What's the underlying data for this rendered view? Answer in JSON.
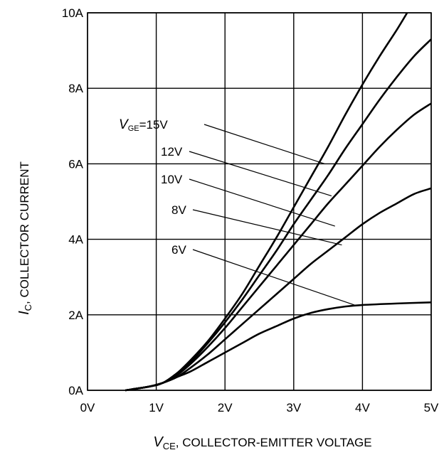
{
  "chart_data": {
    "type": "line",
    "title": "",
    "xlabel": {
      "symbol": "V",
      "sub": "CE",
      "text": ", COLLECTOR-EMITTER VOLTAGE"
    },
    "ylabel": {
      "symbol": "I",
      "sub": "C",
      "text": ", COLLECTOR CURRENT"
    },
    "xlim": [
      0,
      5
    ],
    "ylim": [
      0,
      10
    ],
    "xticks": [
      0,
      1,
      2,
      3,
      4,
      5
    ],
    "yticks": [
      0,
      2,
      4,
      6,
      8,
      10
    ],
    "xtick_labels": [
      "0V",
      "1V",
      "2V",
      "3V",
      "4V",
      "5V"
    ],
    "ytick_labels": [
      "0A",
      "2A",
      "4A",
      "6A",
      "8A",
      "10A"
    ],
    "grid": true,
    "legend_label_prefix": {
      "symbol": "V",
      "sub": "GE",
      "text": "=15V"
    },
    "series": [
      {
        "name": "15V",
        "label_at": [
          3.45,
          6.0
        ],
        "points": [
          [
            0.55,
            0
          ],
          [
            0.9,
            0.1
          ],
          [
            1.1,
            0.2
          ],
          [
            1.3,
            0.45
          ],
          [
            1.5,
            0.8
          ],
          [
            1.75,
            1.3
          ],
          [
            2.0,
            1.9
          ],
          [
            2.25,
            2.55
          ],
          [
            2.5,
            3.3
          ],
          [
            2.75,
            4.05
          ],
          [
            3.0,
            4.85
          ],
          [
            3.25,
            5.65
          ],
          [
            3.5,
            6.45
          ],
          [
            3.75,
            7.3
          ],
          [
            4.0,
            8.1
          ],
          [
            4.25,
            8.85
          ],
          [
            4.5,
            9.55
          ],
          [
            4.65,
            10.0
          ]
        ]
      },
      {
        "name": "12V",
        "label_at": [
          3.55,
          5.15
        ],
        "points": [
          [
            0.55,
            0
          ],
          [
            0.9,
            0.1
          ],
          [
            1.1,
            0.2
          ],
          [
            1.3,
            0.45
          ],
          [
            1.5,
            0.75
          ],
          [
            1.75,
            1.25
          ],
          [
            2.0,
            1.8
          ],
          [
            2.25,
            2.4
          ],
          [
            2.5,
            3.05
          ],
          [
            2.75,
            3.7
          ],
          [
            3.0,
            4.4
          ],
          [
            3.25,
            5.05
          ],
          [
            3.5,
            5.7
          ],
          [
            3.75,
            6.4
          ],
          [
            4.0,
            7.05
          ],
          [
            4.25,
            7.7
          ],
          [
            4.5,
            8.3
          ],
          [
            4.75,
            8.85
          ],
          [
            5.0,
            9.3
          ]
        ]
      },
      {
        "name": "10V",
        "label_at": [
          3.6,
          4.35
        ],
        "points": [
          [
            0.55,
            0
          ],
          [
            0.9,
            0.1
          ],
          [
            1.1,
            0.2
          ],
          [
            1.3,
            0.4
          ],
          [
            1.5,
            0.7
          ],
          [
            1.75,
            1.15
          ],
          [
            2.0,
            1.65
          ],
          [
            2.25,
            2.2
          ],
          [
            2.5,
            2.75
          ],
          [
            2.75,
            3.3
          ],
          [
            3.0,
            3.85
          ],
          [
            3.25,
            4.4
          ],
          [
            3.5,
            4.95
          ],
          [
            3.75,
            5.45
          ],
          [
            4.0,
            5.95
          ],
          [
            4.25,
            6.45
          ],
          [
            4.5,
            6.9
          ],
          [
            4.75,
            7.3
          ],
          [
            5.0,
            7.6
          ]
        ]
      },
      {
        "name": "8V",
        "label_at": [
          3.7,
          3.85
        ],
        "points": [
          [
            0.55,
            0
          ],
          [
            0.9,
            0.1
          ],
          [
            1.1,
            0.2
          ],
          [
            1.3,
            0.35
          ],
          [
            1.5,
            0.6
          ],
          [
            1.75,
            0.95
          ],
          [
            2.0,
            1.35
          ],
          [
            2.25,
            1.75
          ],
          [
            2.5,
            2.15
          ],
          [
            2.75,
            2.55
          ],
          [
            3.0,
            2.95
          ],
          [
            3.25,
            3.35
          ],
          [
            3.5,
            3.7
          ],
          [
            3.75,
            4.05
          ],
          [
            4.0,
            4.4
          ],
          [
            4.25,
            4.7
          ],
          [
            4.5,
            4.95
          ],
          [
            4.75,
            5.2
          ],
          [
            5.0,
            5.35
          ]
        ]
      },
      {
        "name": "6V",
        "label_at": [
          3.9,
          2.25
        ],
        "points": [
          [
            0.55,
            0
          ],
          [
            0.9,
            0.1
          ],
          [
            1.1,
            0.2
          ],
          [
            1.3,
            0.35
          ],
          [
            1.5,
            0.5
          ],
          [
            1.75,
            0.75
          ],
          [
            2.0,
            1.0
          ],
          [
            2.25,
            1.25
          ],
          [
            2.5,
            1.5
          ],
          [
            2.75,
            1.7
          ],
          [
            3.0,
            1.9
          ],
          [
            3.25,
            2.05
          ],
          [
            3.5,
            2.15
          ],
          [
            3.75,
            2.22
          ],
          [
            4.0,
            2.26
          ],
          [
            4.5,
            2.3
          ],
          [
            5.0,
            2.33
          ]
        ]
      }
    ]
  }
}
